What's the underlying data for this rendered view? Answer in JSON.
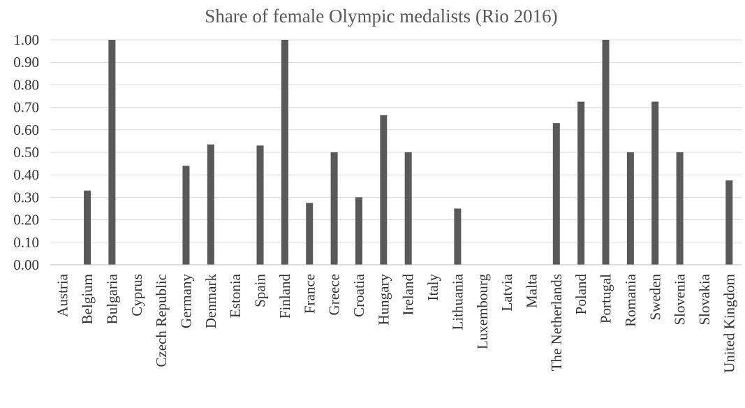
{
  "chart_data": {
    "type": "bar",
    "title": "Share of female Olympic medalists (Rio 2016)",
    "xlabel": "",
    "ylabel": "",
    "ylim": [
      0,
      1
    ],
    "yticks": [
      "0.00",
      "0.10",
      "0.20",
      "0.30",
      "0.40",
      "0.50",
      "0.60",
      "0.70",
      "0.80",
      "0.90",
      "1.00"
    ],
    "grid": true,
    "legend": "none",
    "bar_color": "#595959",
    "categories": [
      "Austria",
      "Belgium",
      "Bulgaria",
      "Cyprus",
      "Czech Republic",
      "Germany",
      "Denmark",
      "Estonia",
      "Spain",
      "Finland",
      "France",
      "Greece",
      "Croatia",
      "Hungary",
      "Ireland",
      "Italy",
      "Lithuania",
      "Luxembourg",
      "Latvia",
      "Malta",
      "The Netherlands",
      "Poland",
      "Portugal",
      "Romania",
      "Sweden",
      "Slovenia",
      "Slovakia",
      "United Kingdom"
    ],
    "values": [
      0,
      0.33,
      1.0,
      0,
      0,
      0.44,
      0.535,
      0,
      0.53,
      1.0,
      0.275,
      0.5,
      0.3,
      0.665,
      0.5,
      0,
      0.25,
      0,
      0,
      0,
      0.63,
      0.725,
      1.0,
      0.5,
      0.725,
      0.5,
      0,
      0.375
    ]
  }
}
